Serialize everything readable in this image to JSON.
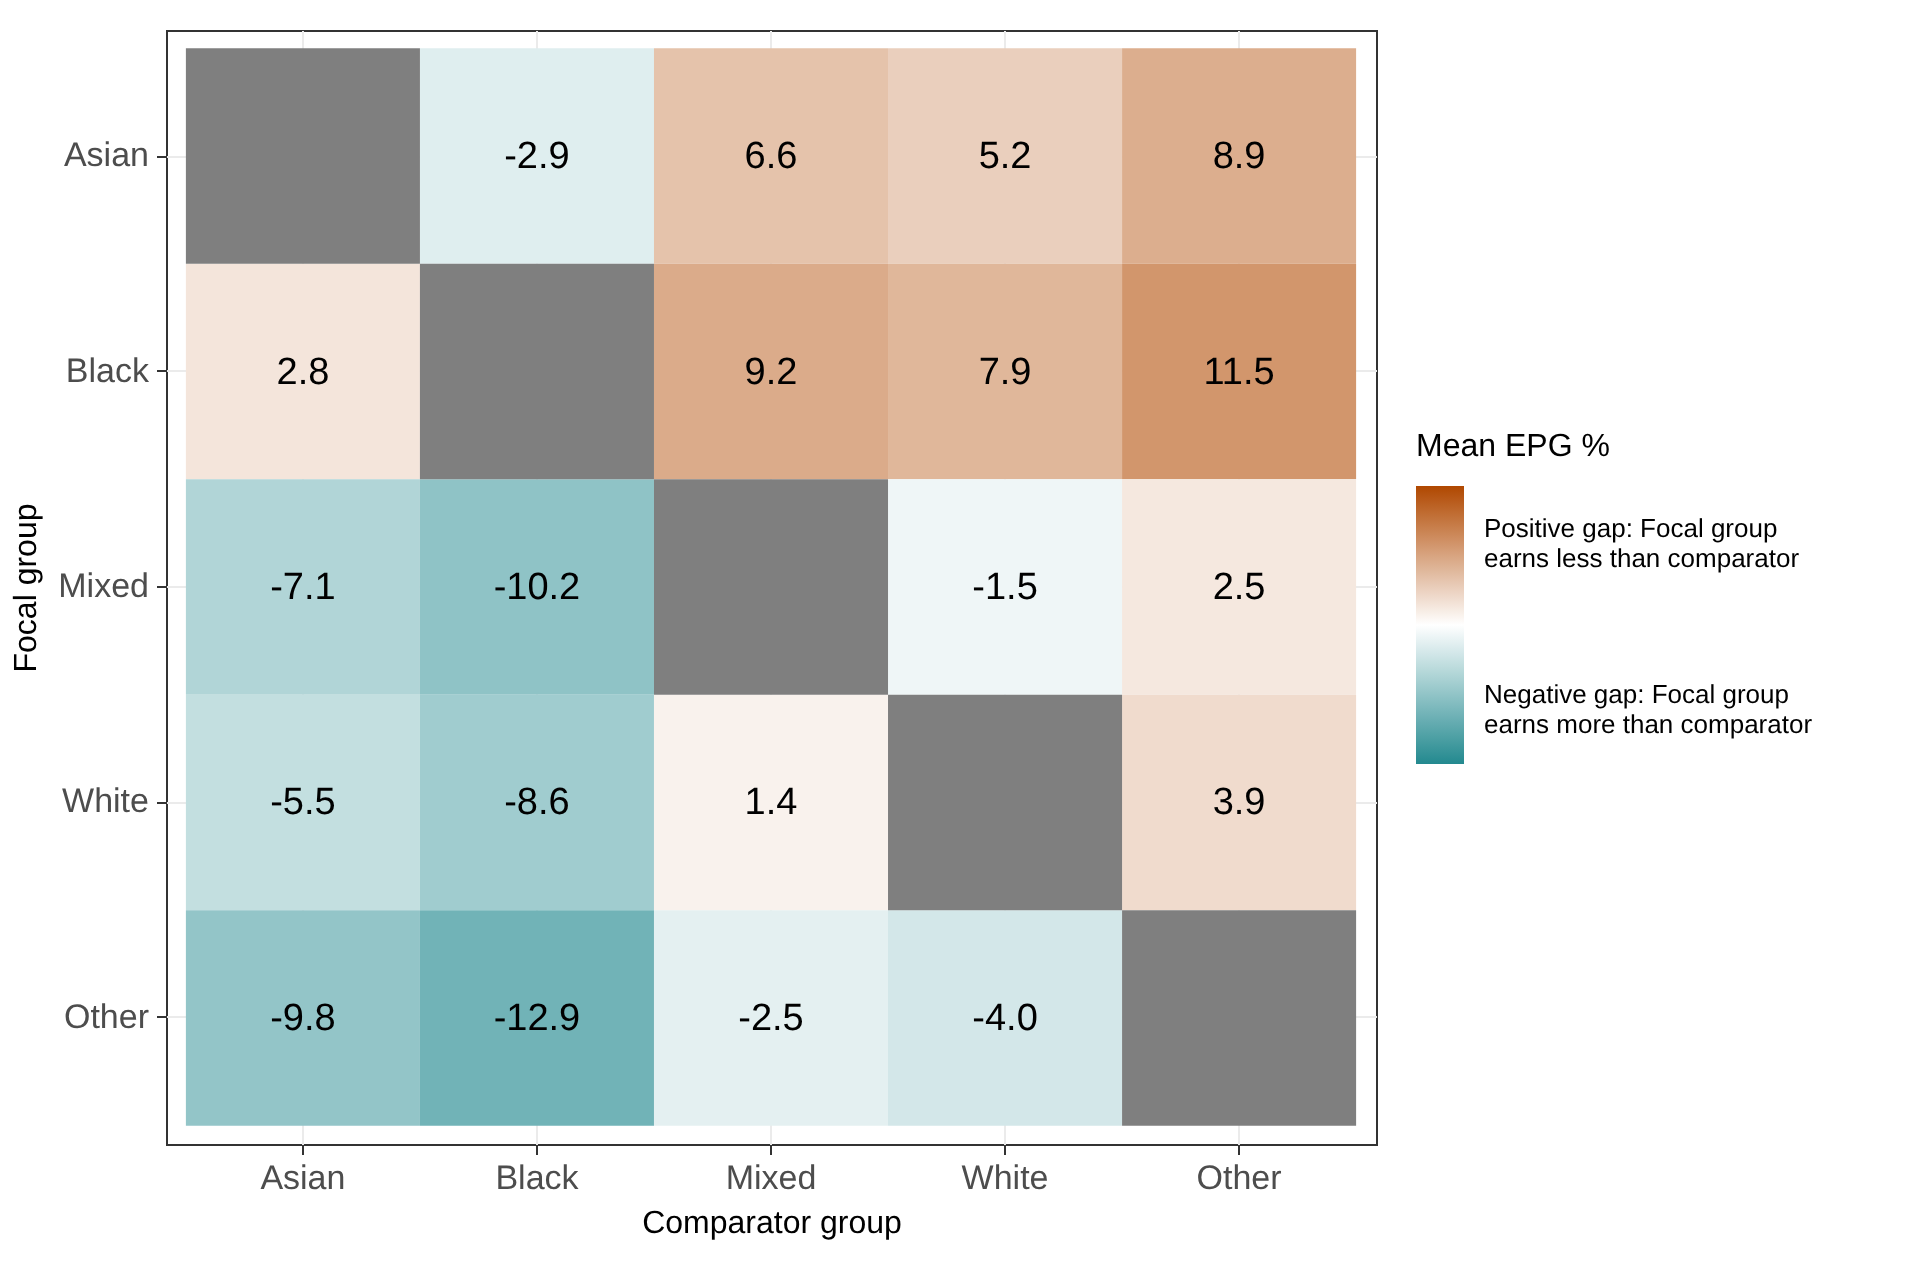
{
  "chart_data": {
    "type": "heatmap",
    "xlabel": "Comparator group",
    "ylabel": "Focal group",
    "clabel": "Mean EPG %",
    "categories": [
      "Asian",
      "Black",
      "Mixed",
      "White",
      "Other"
    ],
    "y_categories": [
      "Asian",
      "Black",
      "Mixed",
      "White",
      "Other"
    ],
    "cells": [
      [
        null,
        -2.9,
        6.6,
        5.2,
        8.9
      ],
      [
        2.8,
        null,
        9.2,
        7.9,
        11.5
      ],
      [
        -7.1,
        -10.2,
        null,
        -1.5,
        2.5
      ],
      [
        -5.5,
        -8.6,
        1.4,
        null,
        3.9
      ],
      [
        -9.8,
        -12.9,
        -2.5,
        -4.0,
        null
      ]
    ],
    "clim": [
      -20,
      20
    ],
    "cticks": [
      {
        "value": 12,
        "label": "Positive gap: Focal group earns less than comparator"
      },
      {
        "value": -12,
        "label": "Negative gap: Focal group earns more than comparator"
      }
    ],
    "cell_labels": [
      [
        null,
        "-2.9",
        "6.6",
        "5.2",
        "8.9"
      ],
      [
        "2.8",
        null,
        "9.2",
        "7.9",
        "11.5"
      ],
      [
        "-7.1",
        "-10.2",
        null,
        "-1.5",
        "2.5"
      ],
      [
        "-5.5",
        "-8.6",
        "1.4",
        null,
        "3.9"
      ],
      [
        "-9.8",
        "-12.9",
        "-2.5",
        "-4.0",
        null
      ]
    ],
    "grid": true
  }
}
